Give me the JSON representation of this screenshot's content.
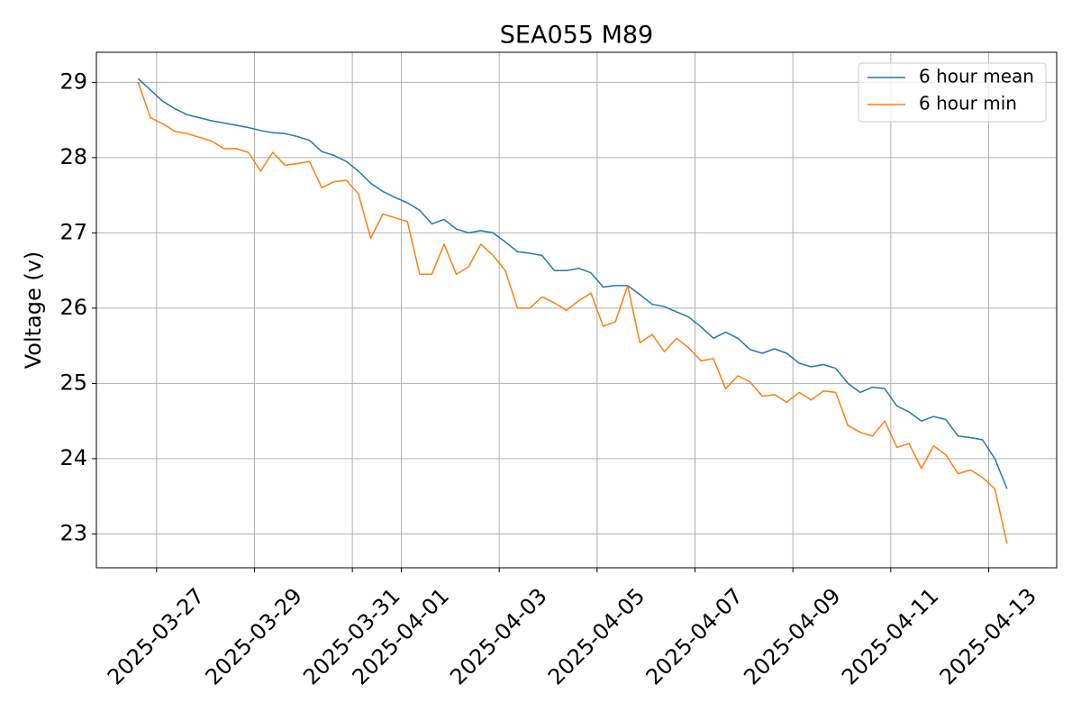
{
  "chart_data": {
    "type": "line",
    "title": "SEA055 M89",
    "y_label": "Voltage (v)",
    "x": [
      "2025-03-26 15:00",
      "2025-03-26 21:00",
      "2025-03-27 03:00",
      "2025-03-27 09:00",
      "2025-03-27 15:00",
      "2025-03-27 21:00",
      "2025-03-28 03:00",
      "2025-03-28 09:00",
      "2025-03-28 15:00",
      "2025-03-28 21:00",
      "2025-03-29 03:00",
      "2025-03-29 09:00",
      "2025-03-29 15:00",
      "2025-03-29 21:00",
      "2025-03-30 03:00",
      "2025-03-30 09:00",
      "2025-03-30 15:00",
      "2025-03-30 21:00",
      "2025-03-31 03:00",
      "2025-03-31 09:00",
      "2025-03-31 15:00",
      "2025-03-31 21:00",
      "2025-04-01 03:00",
      "2025-04-01 09:00",
      "2025-04-01 15:00",
      "2025-04-01 21:00",
      "2025-04-02 03:00",
      "2025-04-02 09:00",
      "2025-04-02 15:00",
      "2025-04-02 21:00",
      "2025-04-03 03:00",
      "2025-04-03 09:00",
      "2025-04-03 15:00",
      "2025-04-03 21:00",
      "2025-04-04 03:00",
      "2025-04-04 09:00",
      "2025-04-04 15:00",
      "2025-04-04 21:00",
      "2025-04-05 03:00",
      "2025-04-05 09:00",
      "2025-04-05 15:00",
      "2025-04-05 21:00",
      "2025-04-06 03:00",
      "2025-04-06 09:00",
      "2025-04-06 15:00",
      "2025-04-06 21:00",
      "2025-04-07 03:00",
      "2025-04-07 09:00",
      "2025-04-07 15:00",
      "2025-04-07 21:00",
      "2025-04-08 03:00",
      "2025-04-08 09:00",
      "2025-04-08 15:00",
      "2025-04-08 21:00",
      "2025-04-09 03:00",
      "2025-04-09 09:00",
      "2025-04-09 15:00",
      "2025-04-09 21:00",
      "2025-04-10 03:00",
      "2025-04-10 09:00",
      "2025-04-10 15:00",
      "2025-04-10 21:00",
      "2025-04-11 03:00",
      "2025-04-11 09:00",
      "2025-04-11 15:00",
      "2025-04-11 21:00",
      "2025-04-12 03:00",
      "2025-04-12 09:00",
      "2025-04-12 15:00",
      "2025-04-12 21:00",
      "2025-04-13 03:00",
      "2025-04-13 09:00"
    ],
    "series": [
      {
        "name": "6 hour mean",
        "color": "#1f77b4",
        "values": [
          29.05,
          28.9,
          28.75,
          28.65,
          28.57,
          28.53,
          28.49,
          28.46,
          28.43,
          28.4,
          28.36,
          28.33,
          28.32,
          28.28,
          28.23,
          28.08,
          28.03,
          27.95,
          27.82,
          27.66,
          27.55,
          27.47,
          27.4,
          27.3,
          27.12,
          27.18,
          27.05,
          27.0,
          27.03,
          27.0,
          26.88,
          26.75,
          26.73,
          26.7,
          26.5,
          26.5,
          26.53,
          26.47,
          26.28,
          26.3,
          26.3,
          26.18,
          26.05,
          26.02,
          25.95,
          25.88,
          25.75,
          25.6,
          25.68,
          25.6,
          25.45,
          25.4,
          25.46,
          25.4,
          25.27,
          25.22,
          25.25,
          25.2,
          25.0,
          24.88,
          24.95,
          24.93,
          24.7,
          24.62,
          24.5,
          24.56,
          24.52,
          24.3,
          24.28,
          24.25,
          24.0,
          23.6
        ]
      },
      {
        "name": "6 hour min",
        "color": "#ff7f0e",
        "values": [
          29.0,
          28.53,
          28.45,
          28.35,
          28.32,
          28.27,
          28.22,
          28.12,
          28.12,
          28.07,
          27.82,
          28.07,
          27.9,
          27.92,
          27.95,
          27.6,
          27.68,
          27.7,
          27.52,
          26.93,
          27.25,
          27.2,
          27.15,
          26.45,
          26.45,
          26.85,
          26.45,
          26.55,
          26.85,
          26.7,
          26.5,
          26.0,
          26.0,
          26.15,
          26.07,
          25.97,
          26.1,
          26.2,
          25.76,
          25.82,
          26.3,
          25.54,
          25.65,
          25.42,
          25.6,
          25.47,
          25.3,
          25.33,
          24.93,
          25.1,
          25.02,
          24.83,
          24.85,
          24.75,
          24.88,
          24.78,
          24.9,
          24.88,
          24.44,
          24.35,
          24.3,
          24.5,
          24.15,
          24.2,
          23.87,
          24.17,
          24.05,
          23.8,
          23.85,
          23.75,
          23.6,
          22.87
        ]
      }
    ],
    "xlim": [
      "2025-03-25 18:30",
      "2025-04-14 09:20"
    ],
    "xticks": [
      "2025-03-27",
      "2025-03-29",
      "2025-03-31",
      "2025-04-01",
      "2025-04-03",
      "2025-04-05",
      "2025-04-07",
      "2025-04-09",
      "2025-04-11",
      "2025-04-13"
    ],
    "ylim": [
      22.55,
      29.4
    ],
    "yticks": [
      23,
      24,
      25,
      26,
      27,
      28,
      29
    ],
    "grid": true,
    "legend": "upper right"
  }
}
